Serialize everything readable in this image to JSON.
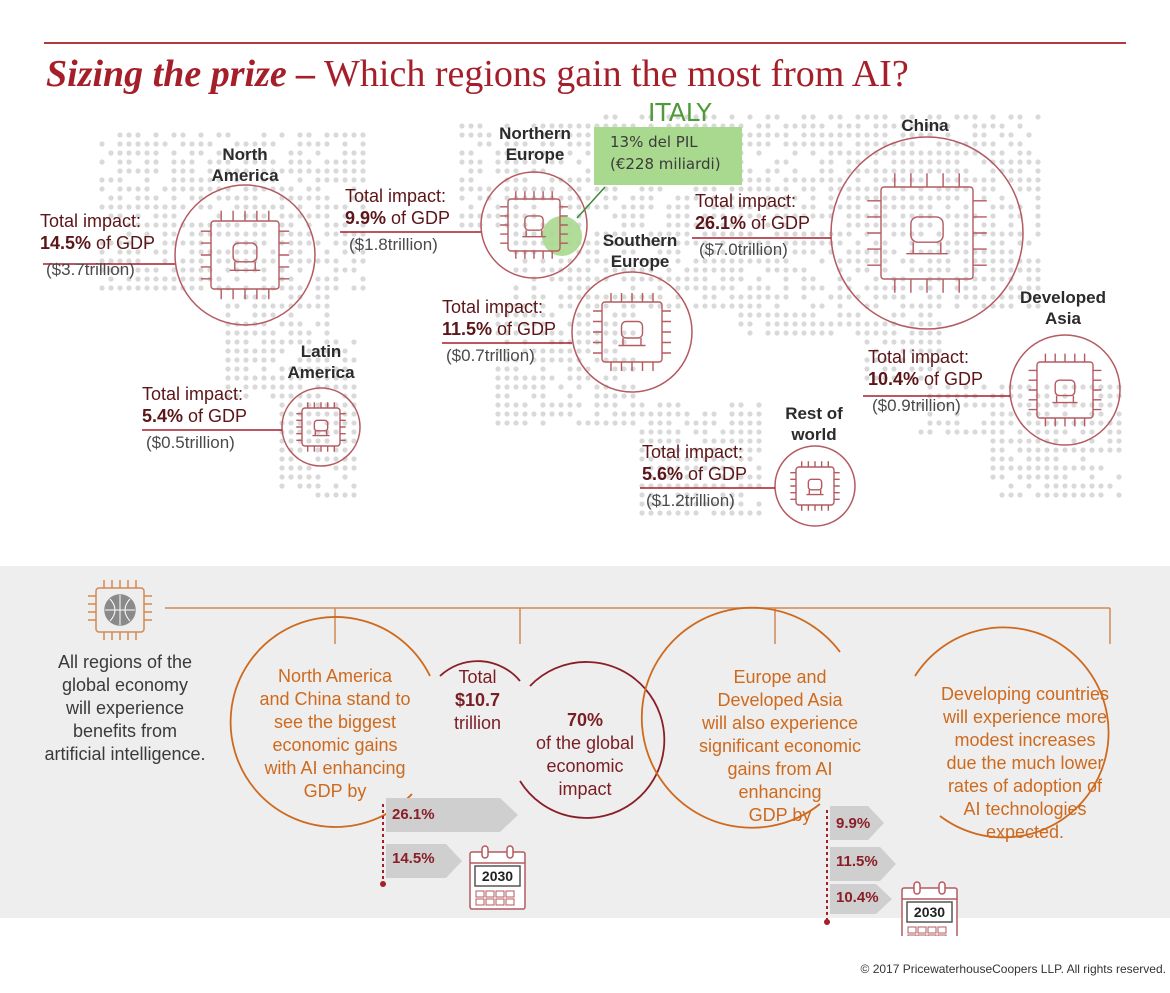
{
  "title": {
    "lead": "Sizing the prize –",
    "rest": " Which regions gain the most from AI?"
  },
  "italy": {
    "label": "ITALY",
    "line1": "13% del PIL",
    "line2": "(€228 miliardi)"
  },
  "regions": {
    "north_america": {
      "name1": "North",
      "name2": "America",
      "label": "Total impact:",
      "pct": "14.5%",
      "of": " of GDP",
      "value": "($3.7trillion)"
    },
    "northern_europe": {
      "name1": "Northern",
      "name2": "Europe",
      "label": "Total impact:",
      "pct": "9.9%",
      "of": " of GDP",
      "value": "($1.8trillion)"
    },
    "southern_europe": {
      "name1": "Southern",
      "name2": "Europe",
      "label": "Total impact:",
      "pct": "11.5%",
      "of": " of GDP",
      "value": "($0.7trillion)"
    },
    "china": {
      "name1": "China",
      "label": "Total impact:",
      "pct": "26.1%",
      "of": " of GDP",
      "value": "($7.0trillion)"
    },
    "developed_asia": {
      "name1": "Developed",
      "name2": "Asia",
      "label": "Total impact:",
      "pct": "10.4%",
      "of": " of GDP",
      "value": "($0.9trillion)"
    },
    "latin_america": {
      "name1": "Latin",
      "name2": "America",
      "label": "Total impact:",
      "pct": "5.4%",
      "of": " of GDP",
      "value": "($0.5trillion)"
    },
    "rest_of_world": {
      "name1": "Rest of",
      "name2": "world",
      "label": "Total impact:",
      "pct": "5.6%",
      "of": " of GDP",
      "value": "($1.2trillion)"
    }
  },
  "bottom": {
    "all_regions": [
      "All regions of the",
      "global economy",
      "will experience",
      "benefits from",
      "artificial intelligence."
    ],
    "na_china": [
      "North America",
      "and China stand to",
      "see the biggest",
      "economic gains",
      "with AI enhancing",
      "GDP by"
    ],
    "total": [
      "Total",
      "$10.7",
      "trillion"
    ],
    "seventy": [
      "70%",
      "of the global",
      "economic",
      "impact"
    ],
    "europe_asia": [
      "Europe and",
      "Developed Asia",
      "will also experience",
      "significant economic",
      "gains from AI",
      "enhancing",
      "GDP by"
    ],
    "developing": [
      "Developing countries",
      "will experience more",
      "modest increases",
      "due the much lower",
      "rates of adoption of",
      "AI technologies",
      "expected."
    ],
    "left_values": [
      "26.1%",
      "14.5%"
    ],
    "right_values": [
      "9.9%",
      "11.5%",
      "10.4%"
    ],
    "year": "2030"
  },
  "copyright": "© 2017 PricewaterhouseCoopers LLP. All rights reserved.",
  "colors": {
    "accent_red": "#a51f2b",
    "orange": "#ce6a1e",
    "green_box": "#a9d88f",
    "map_dots": "#d9d9d9"
  }
}
